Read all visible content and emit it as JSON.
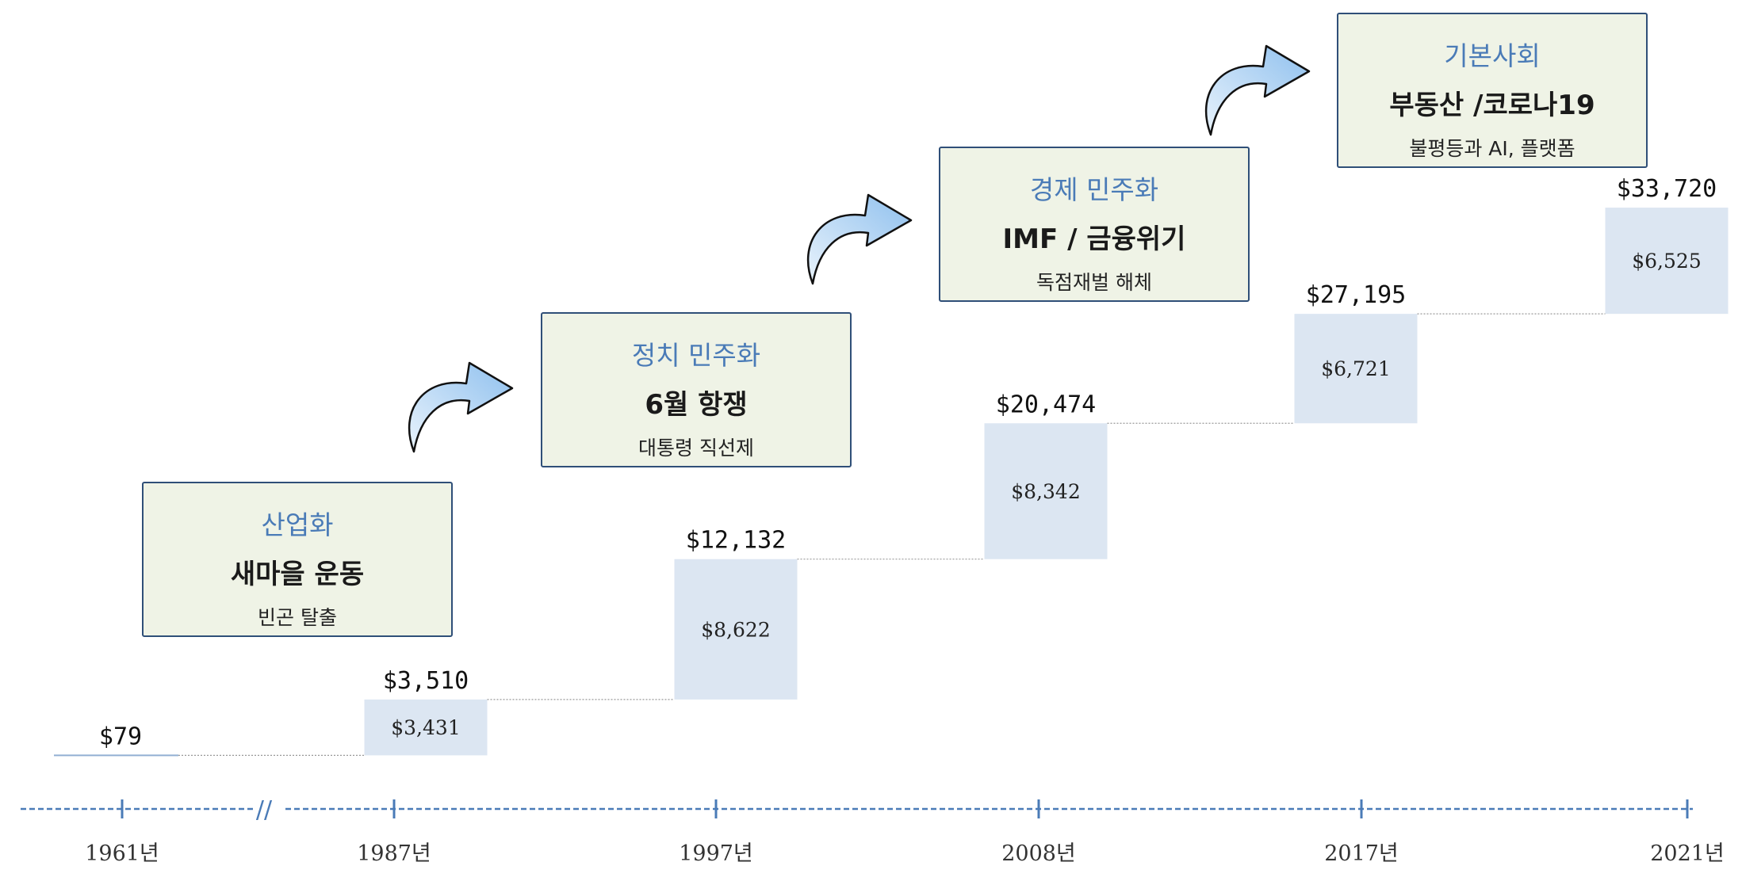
{
  "chart_data": {
    "type": "waterfall",
    "x": [
      "1961년",
      "1987년",
      "1997년",
      "2008년",
      "2017년",
      "2021년"
    ],
    "totals": [
      "$79",
      "$3,510",
      "$12,132",
      "$20,474",
      "$27,195",
      "$33,720"
    ],
    "total_values": [
      79,
      3510,
      12132,
      20474,
      27195,
      33720
    ],
    "increments": [
      "$3,431",
      "$8,622",
      "$8,342",
      "$6,721",
      "$6,525"
    ],
    "increment_values": [
      3431,
      8622,
      8342,
      6721,
      6525
    ],
    "axis_break_label": "//",
    "ylim": [
      0,
      40000
    ],
    "colors": {
      "bar": "#dce6f2",
      "axis": "#4a7bb7",
      "connector": "#999999"
    }
  },
  "phases": [
    {
      "title": "산업화",
      "main": "새마을 운동",
      "sub": "빈곤 탈출"
    },
    {
      "title": "정치 민주화",
      "main": "6월 항쟁",
      "sub": "대통령 직선제"
    },
    {
      "title": "경제 민주화",
      "main": "IMF / 금융위기",
      "sub": "독점재벌 해체"
    },
    {
      "title": "기본사회",
      "main": "부동산 /코로나19",
      "sub": "불평등과 AI, 플랫폼"
    }
  ],
  "colors": {
    "phase_fill": "#eff3e6",
    "phase_border": "#2f4f78",
    "phase_title": "#4a7bb7",
    "arrow_fill": "#a9cff2"
  }
}
